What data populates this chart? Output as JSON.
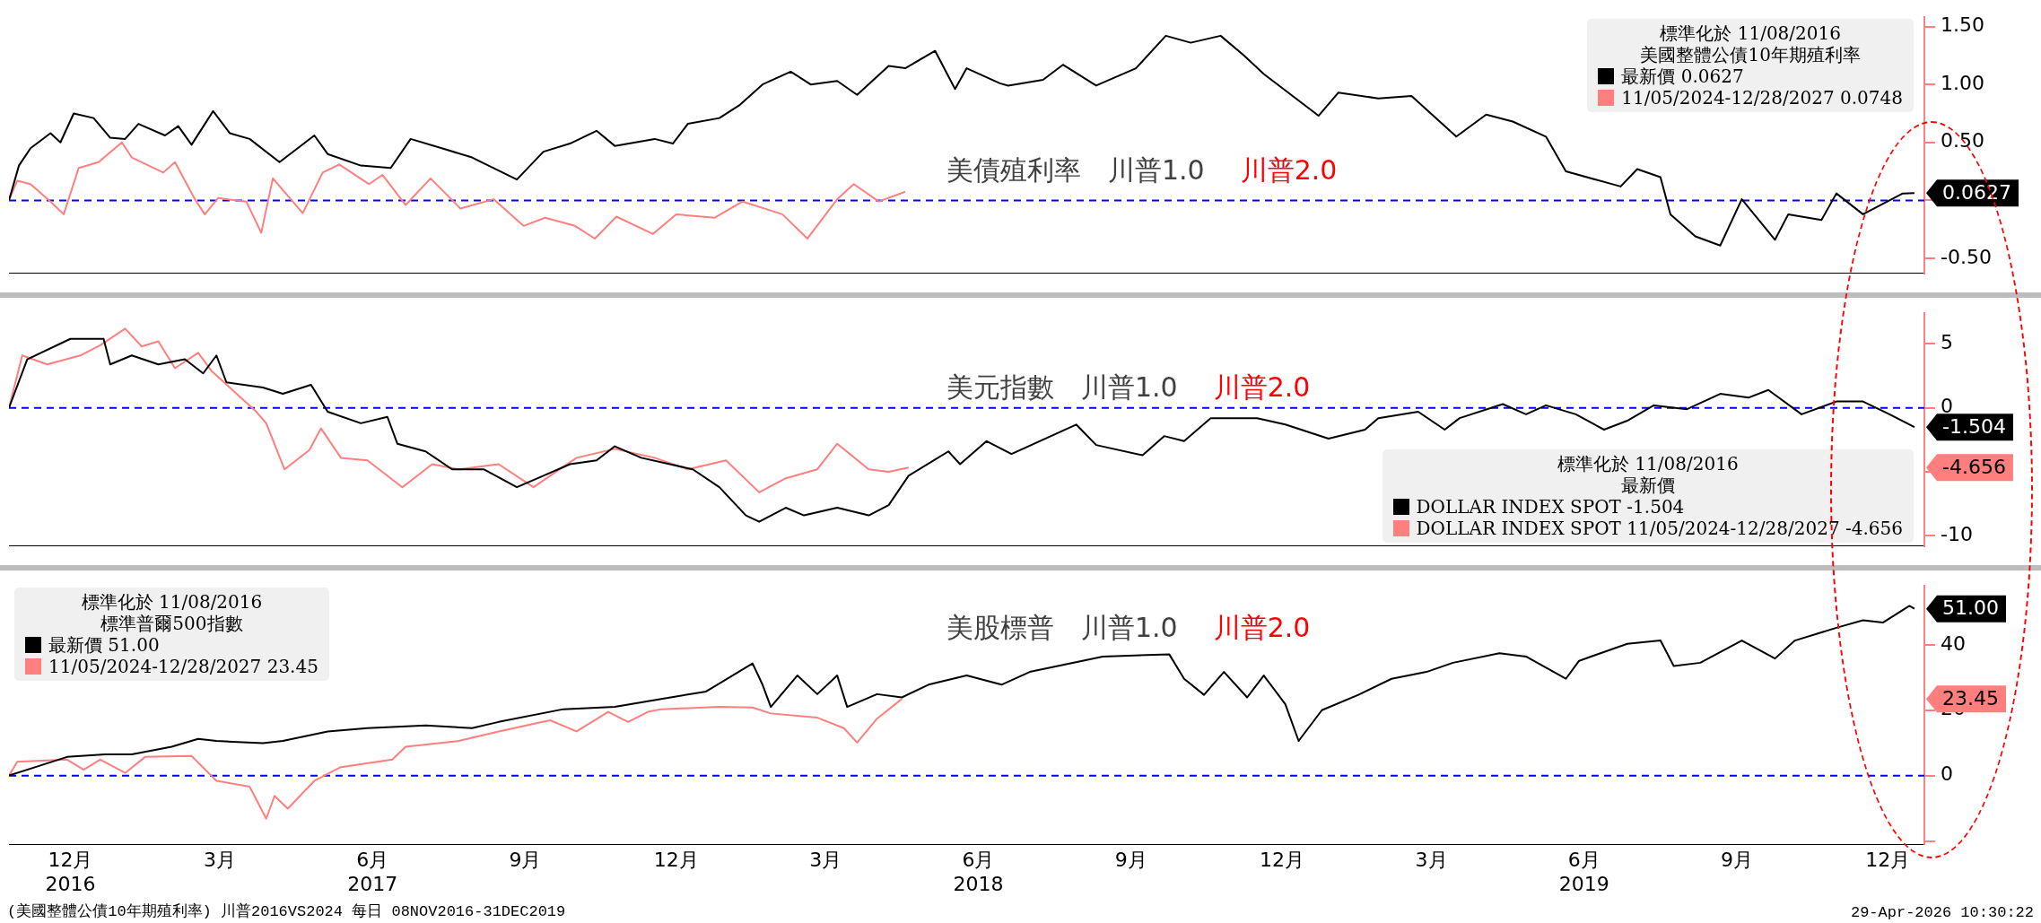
{
  "chart_data": [
    {
      "type": "line",
      "title": "美債殖利率　川普1.0",
      "subtitle": "川普2.0",
      "legend": "top right",
      "legend_title": "標準化於 11/08/2016\n美國整體公債10年期殖利率",
      "tick_labels": "y",
      "xlim": [
        "2016-11-08",
        "2020-01-06"
      ],
      "ylim": [
        -0.63,
        1.58
      ],
      "yticks": [
        {
          "value": 1.5,
          "label": "1.50"
        },
        {
          "value": 1,
          "label": "1.00"
        },
        {
          "value": 0.5,
          "label": "0.50"
        },
        {
          "value": 0,
          "label": null
        },
        {
          "value": -0.5,
          "label": "-0.50"
        }
      ],
      "ref_lines": [
        {
          "axis": "y",
          "value": 0,
          "color": "#0000ff",
          "line_style": "dashed"
        }
      ],
      "annotations": [
        "0.0627"
      ],
      "series": [
        {
          "name": "最新價 0.0627",
          "color": "#000000",
          "x": [
            "2016-11-08",
            "2016-11-14",
            "2016-11-21",
            "2016-12-03",
            "2016-12-09",
            "2016-12-17",
            "2016-12-29",
            "2017-01-08",
            "2017-01-17",
            "2017-01-25",
            "2017-02-10",
            "2017-02-18",
            "2017-02-26",
            "2017-03-11",
            "2017-03-21",
            "2017-04-02",
            "2017-04-20",
            "2017-05-11",
            "2017-05-19",
            "2017-06-08",
            "2017-06-26",
            "2017-07-08",
            "2017-07-29",
            "2017-08-14",
            "2017-09-10",
            "2017-09-26",
            "2017-10-12",
            "2017-10-28",
            "2017-11-08",
            "2017-12-02",
            "2017-12-13",
            "2017-12-22",
            "2018-01-10",
            "2018-01-22",
            "2018-02-05",
            "2018-02-22",
            "2018-03-06",
            "2018-03-22",
            "2018-04-03",
            "2018-04-22",
            "2018-05-02",
            "2018-05-20",
            "2018-06-01",
            "2018-06-08",
            "2018-06-28",
            "2018-07-03",
            "2018-07-24",
            "2018-08-05",
            "2018-08-25",
            "2018-09-18",
            "2018-10-06",
            "2018-10-21",
            "2018-11-08",
            "2018-11-22",
            "2018-12-04",
            "2019-01-06",
            "2019-01-18",
            "2019-02-11",
            "2019-03-03",
            "2019-03-30",
            "2019-04-17",
            "2019-05-03",
            "2019-05-23",
            "2019-06-04",
            "2019-07-07",
            "2019-07-17",
            "2019-07-31",
            "2019-08-06",
            "2019-08-21",
            "2019-09-05",
            "2019-09-18",
            "2019-10-08",
            "2019-10-16",
            "2019-11-05",
            "2019-11-14",
            "2019-11-30",
            "2019-12-24",
            "2019-12-31"
          ],
          "values": [
            0,
            0.3,
            0.45,
            0.58,
            0.5,
            0.75,
            0.71,
            0.54,
            0.53,
            0.66,
            0.56,
            0.64,
            0.48,
            0.77,
            0.58,
            0.53,
            0.33,
            0.56,
            0.4,
            0.3,
            0.28,
            0.53,
            0.44,
            0.37,
            0.18,
            0.42,
            0.49,
            0.6,
            0.47,
            0.53,
            0.49,
            0.66,
            0.71,
            0.82,
            1.0,
            1.11,
            1.0,
            1.03,
            0.91,
            1.16,
            1.14,
            1.29,
            0.96,
            1.14,
            1.01,
            0.99,
            1.04,
            1.17,
            0.99,
            1.14,
            1.42,
            1.36,
            1.42,
            1.25,
            1.09,
            0.73,
            0.93,
            0.88,
            0.9,
            0.55,
            0.74,
            0.68,
            0.55,
            0.25,
            0.12,
            0.27,
            0.2,
            -0.12,
            -0.31,
            -0.39,
            0.01,
            -0.34,
            -0.12,
            -0.17,
            0.06,
            -0.12,
            0.06,
            0.0627
          ]
        },
        {
          "name": "11/05/2024-12/28/2027 0.0748",
          "color": "#ff7f7f",
          "x": [
            "2016-11-08",
            "2016-11-13",
            "2016-11-21",
            "2016-12-03",
            "2016-12-11",
            "2016-12-20",
            "2017-01-01",
            "2017-01-15",
            "2017-01-21",
            "2017-02-09",
            "2017-02-16",
            "2017-02-28",
            "2017-03-06",
            "2017-03-14",
            "2017-03-31",
            "2017-04-09",
            "2017-04-16",
            "2017-05-04",
            "2017-05-16",
            "2017-05-26",
            "2017-06-13",
            "2017-06-21",
            "2017-07-05",
            "2017-07-20",
            "2017-08-07",
            "2017-08-27",
            "2017-09-14",
            "2017-09-27",
            "2017-10-15",
            "2017-10-27",
            "2017-11-09",
            "2017-12-01",
            "2017-12-15",
            "2018-01-07",
            "2018-01-24",
            "2018-02-17",
            "2018-03-04",
            "2018-03-22",
            "2018-04-01",
            "2018-04-16",
            "2018-05-02"
          ],
          "values": [
            0,
            0.17,
            0.14,
            -0.01,
            -0.12,
            0.28,
            0.33,
            0.5,
            0.37,
            0.24,
            0.33,
            0.01,
            -0.12,
            0.02,
            -0.01,
            -0.28,
            0.19,
            -0.11,
            0.24,
            0.31,
            0.14,
            0.22,
            -0.04,
            0.19,
            -0.07,
            0.01,
            -0.22,
            -0.15,
            -0.22,
            -0.33,
            -0.14,
            -0.29,
            -0.12,
            -0.15,
            -0.01,
            -0.12,
            -0.33,
            0.01,
            0.14,
            -0.01,
            0.0748
          ]
        }
      ]
    },
    {
      "type": "line",
      "title": "美元指數　川普1.0",
      "subtitle": "川普2.0",
      "legend": "bottom right",
      "legend_title": "標準化於 11/08/2016\n最新價",
      "tick_labels": "y",
      "xlim": [
        "2016-11-08",
        "2020-01-06"
      ],
      "ylim": [
        -10.8,
        7.4
      ],
      "yticks": [
        5,
        0,
        {
          "value": -5,
          "label": null
        },
        -10
      ],
      "ref_lines": [
        {
          "axis": "y",
          "value": 0,
          "color": "#0000ff",
          "line_style": "dashed"
        }
      ],
      "annotations": [
        "-1.504",
        "-4.656"
      ],
      "series": [
        {
          "name": "DOLLAR INDEX SPOT -1.504",
          "color": "#000000",
          "x": [
            "2016-11-08",
            "2016-11-19",
            "2016-12-15",
            "2017-01-04",
            "2017-01-08",
            "2017-01-21",
            "2017-02-06",
            "2017-02-22",
            "2017-03-05",
            "2017-03-13",
            "2017-03-19",
            "2017-04-10",
            "2017-04-22",
            "2017-05-09",
            "2017-05-19",
            "2017-06-08",
            "2017-06-24",
            "2017-06-30",
            "2017-07-17",
            "2017-08-02",
            "2017-08-21",
            "2017-09-10",
            "2017-09-26",
            "2017-10-12",
            "2017-10-28",
            "2017-11-08",
            "2017-11-24",
            "2017-12-25",
            "2018-01-10",
            "2018-01-26",
            "2018-02-03",
            "2018-02-19",
            "2018-03-02",
            "2018-03-22",
            "2018-04-10",
            "2018-04-22",
            "2018-05-04",
            "2018-05-28",
            "2018-06-04",
            "2018-06-20",
            "2018-07-05",
            "2018-08-13",
            "2018-08-25",
            "2018-09-22",
            "2018-10-05",
            "2018-10-17",
            "2018-11-02",
            "2018-11-30",
            "2018-12-17",
            "2019-01-12",
            "2019-02-03",
            "2019-02-11",
            "2019-03-07",
            "2019-03-23",
            "2019-04-01",
            "2019-04-27",
            "2019-05-11",
            "2019-05-23",
            "2019-06-10",
            "2019-06-27",
            "2019-07-11",
            "2019-07-27",
            "2019-08-16",
            "2019-09-05",
            "2019-09-22",
            "2019-10-04",
            "2019-10-24",
            "2019-11-14",
            "2019-11-30",
            "2019-12-16",
            "2019-12-31"
          ],
          "values": [
            0,
            3.8,
            5.4,
            5.4,
            3.4,
            4.1,
            3.4,
            3.8,
            2.7,
            4.1,
            2.0,
            1.6,
            1.1,
            1.8,
            -0.3,
            -1.2,
            -0.7,
            -2.8,
            -3.4,
            -4.8,
            -4.8,
            -6.2,
            -5.3,
            -4.4,
            -4.1,
            -3.0,
            -3.9,
            -4.8,
            -6.2,
            -8.4,
            -8.9,
            -7.8,
            -8.4,
            -7.8,
            -8.4,
            -7.6,
            -5.3,
            -3.4,
            -4.4,
            -2.6,
            -3.6,
            -1.3,
            -2.9,
            -3.7,
            -2.2,
            -2.6,
            -0.8,
            -0.8,
            -1.3,
            -2.4,
            -1.7,
            -0.8,
            -0.3,
            -1.7,
            -0.8,
            0.3,
            -0.5,
            0.2,
            -0.5,
            -1.7,
            -1.0,
            0.2,
            -0.1,
            1.1,
            0.8,
            1.4,
            -0.5,
            0.5,
            0.5,
            -0.5,
            -1.504
          ]
        },
        {
          "name": "DOLLAR INDEX SPOT 11/05/2024-12/28/2027 -4.656",
          "color": "#ff7f7f",
          "x": [
            "2016-11-08",
            "2016-11-16",
            "2016-12-01",
            "2016-12-21",
            "2017-01-02",
            "2017-01-17",
            "2017-01-27",
            "2017-02-06",
            "2017-02-16",
            "2017-03-02",
            "2017-03-10",
            "2017-04-06",
            "2017-04-12",
            "2017-04-23",
            "2017-05-08",
            "2017-05-15",
            "2017-05-27",
            "2017-06-12",
            "2017-07-03",
            "2017-07-21",
            "2017-08-06",
            "2017-08-30",
            "2017-09-20",
            "2017-10-16",
            "2017-11-08",
            "2017-12-02",
            "2017-12-22",
            "2018-01-14",
            "2018-02-03",
            "2018-02-19",
            "2018-03-10",
            "2018-03-22",
            "2018-04-10",
            "2018-04-22",
            "2018-05-04"
          ],
          "values": [
            0,
            4.1,
            3.4,
            4.1,
            4.9,
            6.2,
            4.8,
            5.2,
            3.1,
            4.3,
            2.9,
            -0.3,
            -1.2,
            -4.8,
            -3.3,
            -1.6,
            -3.9,
            -4.1,
            -6.2,
            -4.4,
            -4.8,
            -4.4,
            -6.2,
            -3.9,
            -3.2,
            -3.9,
            -4.8,
            -4.1,
            -6.6,
            -5.5,
            -4.8,
            -2.8,
            -4.8,
            -5.0,
            -4.656
          ]
        }
      ]
    },
    {
      "type": "line",
      "title": "美股標普　川普1.0",
      "subtitle": "川普2.0",
      "legend": "top left",
      "legend_title": "標準化於 11/08/2016\n標準普爾500指數",
      "xlim": [
        "2016-11-08",
        "2020-01-06"
      ],
      "ylim": [
        -21,
        58
      ],
      "xticks": [
        {
          "value": "2016-12-15",
          "label": "12月\n2016"
        },
        {
          "value": "2017-03-15",
          "label": "3月"
        },
        {
          "value": "2017-06-15",
          "label": "6月\n2017"
        },
        {
          "value": "2017-09-15",
          "label": "9月"
        },
        {
          "value": "2017-12-15",
          "label": "12月"
        },
        {
          "value": "2018-03-15",
          "label": "3月"
        },
        {
          "value": "2018-06-15",
          "label": "6月\n2018"
        },
        {
          "value": "2018-09-15",
          "label": "9月"
        },
        {
          "value": "2018-12-15",
          "label": "12月"
        },
        {
          "value": "2019-03-15",
          "label": "3月"
        },
        {
          "value": "2019-06-15",
          "label": "6月\n2019"
        },
        {
          "value": "2019-09-15",
          "label": "9月"
        },
        {
          "value": "2019-12-15",
          "label": "12月"
        }
      ],
      "yticks": [
        {
          "value": -20,
          "label": null
        },
        0,
        20,
        40
      ],
      "ref_lines": [
        {
          "axis": "y",
          "value": 0,
          "color": "#0000ff",
          "line_style": "dashed"
        }
      ],
      "annotations": [
        "51.00",
        "23.45",
        "(美國整體公債10年期殖利率) 川普2016VS2024 每日 08NOV2016-31DEC2019",
        "29-Apr-2026 10:30:22"
      ],
      "series": [
        {
          "name": "最新價 51.00",
          "color": "#000000",
          "x": [
            "2016-11-08",
            "2016-11-27",
            "2016-12-13",
            "2017-01-05",
            "2017-01-21",
            "2017-02-14",
            "2017-03-02",
            "2017-03-13",
            "2017-04-10",
            "2017-04-22",
            "2017-05-19",
            "2017-06-12",
            "2017-07-17",
            "2017-08-14",
            "2017-08-30",
            "2017-10-08",
            "2017-11-08",
            "2017-12-02",
            "2018-01-02",
            "2018-01-30",
            "2018-02-05",
            "2018-02-10",
            "2018-02-26",
            "2018-03-10",
            "2018-03-22",
            "2018-03-28",
            "2018-04-15",
            "2018-04-30",
            "2018-05-16",
            "2018-06-08",
            "2018-06-29",
            "2018-07-16",
            "2018-08-29",
            "2018-10-08",
            "2018-10-17",
            "2018-10-29",
            "2018-11-10",
            "2018-11-24",
            "2018-12-04",
            "2018-12-17",
            "2018-12-25",
            "2019-01-08",
            "2019-01-30",
            "2019-02-19",
            "2019-03-12",
            "2019-03-28",
            "2019-04-25",
            "2019-05-11",
            "2019-06-04",
            "2019-06-12",
            "2019-07-11",
            "2019-07-31",
            "2019-08-08",
            "2019-08-24",
            "2019-09-18",
            "2019-10-08",
            "2019-10-20",
            "2019-11-14",
            "2019-11-30",
            "2019-12-12",
            "2019-12-28",
            "2019-12-31"
          ],
          "values": [
            0,
            3.1,
            5.7,
            6.5,
            6.5,
            8.8,
            11.2,
            10.6,
            9.9,
            10.6,
            13.5,
            14.5,
            15.3,
            14.5,
            16.4,
            20.3,
            21.0,
            23.1,
            25.7,
            34.3,
            27.8,
            21.0,
            30.6,
            24.9,
            30.6,
            21.0,
            24.9,
            23.9,
            27.8,
            30.6,
            27.8,
            31.7,
            36.4,
            37.1,
            29.6,
            24.7,
            31.7,
            23.9,
            30.6,
            21.8,
            10.6,
            20.0,
            24.7,
            29.6,
            31.7,
            34.5,
            37.4,
            36.4,
            29.6,
            35.1,
            40.3,
            41.3,
            33.5,
            34.5,
            41.3,
            35.8,
            41.3,
            45.2,
            47.5,
            46.8,
            51.9,
            51.0
          ]
        },
        {
          "name": "11/05/2024-12/28/2027 23.45",
          "color": "#ff7f7f",
          "x": [
            "2016-11-08",
            "2016-11-13",
            "2016-12-13",
            "2016-12-23",
            "2017-01-02",
            "2017-01-17",
            "2017-01-29",
            "2017-02-26",
            "2017-03-13",
            "2017-04-02",
            "2017-04-12",
            "2017-04-17",
            "2017-04-25",
            "2017-05-11",
            "2017-05-27",
            "2017-06-27",
            "2017-07-05",
            "2017-08-06",
            "2017-08-30",
            "2017-09-30",
            "2017-10-16",
            "2017-11-04",
            "2017-11-16",
            "2017-11-28",
            "2017-12-06",
            "2018-01-10",
            "2018-01-30",
            "2018-02-10",
            "2018-03-10",
            "2018-03-26",
            "2018-04-03",
            "2018-04-15",
            "2018-04-30"
          ],
          "values": [
            0,
            4.2,
            4.9,
            1.8,
            4.9,
            0.8,
            5.7,
            6.0,
            -1.6,
            -3.4,
            -13.2,
            -6.2,
            -10.1,
            -1.6,
            2.6,
            4.9,
            8.8,
            10.6,
            13.5,
            16.9,
            13.5,
            19.5,
            16.4,
            19.5,
            20.3,
            21.0,
            20.8,
            19.0,
            17.7,
            14.5,
            10.1,
            17.4,
            23.45
          ]
        }
      ]
    }
  ]
}
